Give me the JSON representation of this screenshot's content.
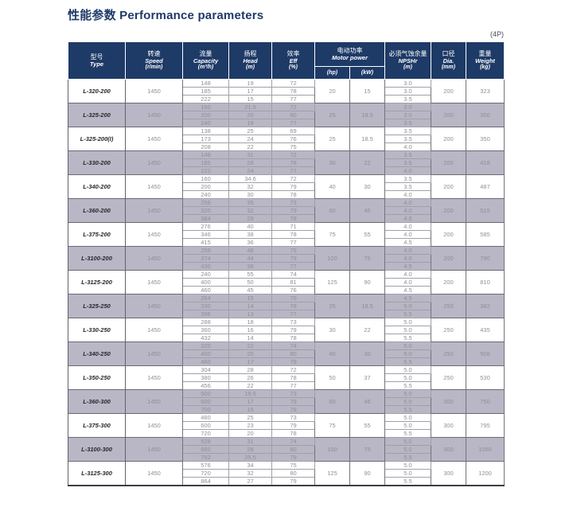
{
  "title": "性能参数 Performance parameters",
  "pole_label": "(4P)",
  "colors": {
    "header_bg": "#1e3a67",
    "band_bg": "#b9b6c5",
    "accent": "#1f3a68"
  },
  "header": {
    "type": {
      "zh": "型号",
      "en": "Type"
    },
    "speed": {
      "zh": "转速",
      "en": "Speed",
      "unit": "(r/min)"
    },
    "capacity": {
      "zh": "流量",
      "en": "Capacity",
      "unit": "(m³/h)"
    },
    "head": {
      "zh": "扬程",
      "en": "Head",
      "unit": "(m)"
    },
    "eff": {
      "zh": "效率",
      "en": "Eff",
      "unit": "(%)"
    },
    "motor_power": {
      "zh": "电动功率",
      "en": "Motor power",
      "unit_hp": "(hp)",
      "unit_kw": "(kW)"
    },
    "npshr": {
      "zh": "必须气蚀余量",
      "en": "NPSHr",
      "unit": "(m)"
    },
    "dia": {
      "zh": "口径",
      "en": "Dia.",
      "unit": "(mm)"
    },
    "weight": {
      "zh": "重量",
      "en": "Weight",
      "unit": "(kg)"
    }
  },
  "table": {
    "groups": [
      {
        "type": "L-320-200",
        "speed": "1450",
        "rows": [
          [
            "148",
            "19",
            "72"
          ],
          [
            "185",
            "17",
            "78"
          ],
          [
            "222",
            "15",
            "77"
          ]
        ],
        "hp": "20",
        "kw": "15",
        "npshr": [
          "3.0",
          "3.0",
          "3.5"
        ],
        "dia": "200",
        "weight": "323"
      },
      {
        "type": "L-325-200",
        "speed": "1450",
        "rows": [
          [
            "160",
            "21.5",
            "72"
          ],
          [
            "200",
            "20",
            "80"
          ],
          [
            "240",
            "18",
            "77"
          ]
        ],
        "hp": "25",
        "kw": "18.5",
        "npshr": [
          "3.0",
          "3.0",
          "3.5"
        ],
        "dia": "200",
        "weight": "350"
      },
      {
        "type": "L-325-200(I)",
        "speed": "1450",
        "rows": [
          [
            "138",
            "25",
            "69"
          ],
          [
            "173",
            "24",
            "76"
          ],
          [
            "208",
            "22",
            "75"
          ]
        ],
        "hp": "25",
        "kw": "18.5",
        "npshr": [
          "3.5",
          "3.5",
          "4.0"
        ],
        "dia": "200",
        "weight": "350"
      },
      {
        "type": "L-330-200",
        "speed": "1450",
        "rows": [
          [
            "148",
            "31",
            "72"
          ],
          [
            "185",
            "28",
            "78"
          ],
          [
            "222",
            "24",
            "77"
          ]
        ],
        "hp": "30",
        "kw": "22",
        "npshr": [
          "3.5",
          "3.5",
          "4.0"
        ],
        "dia": "200",
        "weight": "418"
      },
      {
        "type": "L-340-200",
        "speed": "1450",
        "rows": [
          [
            "160",
            "34.6",
            "72"
          ],
          [
            "200",
            "32",
            "79"
          ],
          [
            "240",
            "30",
            "78"
          ]
        ],
        "hp": "40",
        "kw": "30",
        "npshr": [
          "3.5",
          "3.5",
          "4.0"
        ],
        "dia": "200",
        "weight": "487"
      },
      {
        "type": "L-360-200",
        "speed": "1450",
        "rows": [
          [
            "256",
            "35",
            "73"
          ],
          [
            "320",
            "32",
            "79"
          ],
          [
            "384",
            "29",
            "78"
          ]
        ],
        "hp": "60",
        "kw": "45",
        "npshr": [
          "4.0",
          "4.0",
          "4.5"
        ],
        "dia": "200",
        "weight": "515"
      },
      {
        "type": "L-375-200",
        "speed": "1450",
        "rows": [
          [
            "276",
            "40",
            "71"
          ],
          [
            "346",
            "38",
            "78"
          ],
          [
            "415",
            "36",
            "77"
          ]
        ],
        "hp": "75",
        "kw": "55",
        "npshr": [
          "4.0",
          "4.0",
          "4.5"
        ],
        "dia": "200",
        "weight": "585"
      },
      {
        "type": "L-3100-200",
        "speed": "1450",
        "rows": [
          [
            "258",
            "48",
            "75"
          ],
          [
            "374",
            "44",
            "79"
          ],
          [
            "430",
            "38",
            "77"
          ]
        ],
        "hp": "100",
        "kw": "75",
        "npshr": [
          "4.0",
          "4.0",
          "4.5"
        ],
        "dia": "200",
        "weight": "790"
      },
      {
        "type": "L-3125-200",
        "speed": "1450",
        "rows": [
          [
            "240",
            "55",
            "74"
          ],
          [
            "400",
            "50",
            "81"
          ],
          [
            "460",
            "45",
            "76"
          ]
        ],
        "hp": "125",
        "kw": "90",
        "npshr": [
          "4.0",
          "4.0",
          "4.5"
        ],
        "dia": "200",
        "weight": "810"
      },
      {
        "type": "L-325-250",
        "speed": "1450",
        "rows": [
          [
            "264",
            "15",
            "75"
          ],
          [
            "330",
            "14",
            "78"
          ],
          [
            "396",
            "13",
            "77"
          ]
        ],
        "hp": "25",
        "kw": "18.5",
        "npshr": [
          "4.5",
          "5.0",
          "5.5"
        ],
        "dia": "250",
        "weight": "382"
      },
      {
        "type": "L-330-250",
        "speed": "1450",
        "rows": [
          [
            "288",
            "18",
            "73"
          ],
          [
            "360",
            "16",
            "79"
          ],
          [
            "432",
            "14",
            "78"
          ]
        ],
        "hp": "30",
        "kw": "22",
        "npshr": [
          "5.0",
          "5.0",
          "5.5"
        ],
        "dia": "250",
        "weight": "435"
      },
      {
        "type": "L-340-250",
        "speed": "1450",
        "rows": [
          [
            "320",
            "22",
            "74"
          ],
          [
            "400",
            "20",
            "80"
          ],
          [
            "480",
            "17",
            "79"
          ]
        ],
        "hp": "40",
        "kw": "30",
        "npshr": [
          "5.0",
          "5.0",
          "5.5"
        ],
        "dia": "250",
        "weight": "508"
      },
      {
        "type": "L-350-250",
        "speed": "1450",
        "rows": [
          [
            "304",
            "28",
            "72"
          ],
          [
            "380",
            "26",
            "78"
          ],
          [
            "456",
            "22",
            "77"
          ]
        ],
        "hp": "50",
        "kw": "37",
        "npshr": [
          "5.0",
          "5.0",
          "5.5"
        ],
        "dia": "250",
        "weight": "530"
      },
      {
        "type": "L-360-300",
        "speed": "1450",
        "rows": [
          [
            "500",
            "19.5",
            "73"
          ],
          [
            "600",
            "17",
            "79"
          ],
          [
            "700",
            "15",
            "78"
          ]
        ],
        "hp": "60",
        "kw": "45",
        "npshr": [
          "5.0",
          "5.0",
          "5.5"
        ],
        "dia": "300",
        "weight": "750"
      },
      {
        "type": "L-375-300",
        "speed": "1450",
        "rows": [
          [
            "480",
            "25",
            "73"
          ],
          [
            "600",
            "23",
            "79"
          ],
          [
            "720",
            "20",
            "78"
          ]
        ],
        "hp": "75",
        "kw": "55",
        "npshr": [
          "5.0",
          "5.0",
          "5.5"
        ],
        "dia": "300",
        "weight": "795"
      },
      {
        "type": "L-3100-300",
        "speed": "1450",
        "rows": [
          [
            "528",
            "31",
            "74"
          ],
          [
            "660",
            "28",
            "80"
          ],
          [
            "792",
            "25.5",
            "79"
          ]
        ],
        "hp": "100",
        "kw": "75",
        "npshr": [
          "5.0",
          "5.0",
          "5.5"
        ],
        "dia": "300",
        "weight": "1050"
      },
      {
        "type": "L-3125-300",
        "speed": "1450",
        "rows": [
          [
            "576",
            "34",
            "75"
          ],
          [
            "720",
            "32",
            "80"
          ],
          [
            "864",
            "27",
            "79"
          ]
        ],
        "hp": "125",
        "kw": "90",
        "npshr": [
          "5.0",
          "5.0",
          "5.5"
        ],
        "dia": "300",
        "weight": "1200"
      }
    ]
  }
}
